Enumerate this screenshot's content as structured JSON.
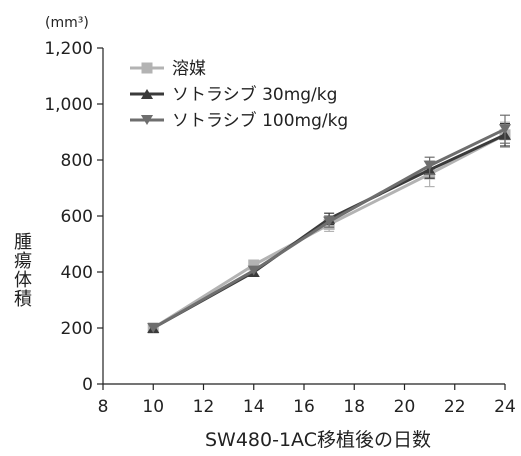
{
  "chart_data": {
    "type": "line",
    "title": "",
    "unit_label": "(mm³)",
    "ylabel": "腫瘍体積",
    "xlabel": "SW480-1AC移植後の日数",
    "xlim": [
      8,
      24
    ],
    "ylim": [
      0,
      1200
    ],
    "x_ticks": [
      8,
      10,
      12,
      14,
      16,
      18,
      20,
      22,
      24
    ],
    "y_ticks": [
      0,
      200,
      400,
      600,
      800,
      1000,
      1200
    ],
    "y_tick_labels": [
      "0",
      "200",
      "400",
      "600",
      "800",
      "1,000",
      "1,200"
    ],
    "x_tick_labels": [
      "8",
      "10",
      "12",
      "14",
      "16",
      "18",
      "20",
      "22",
      "24"
    ],
    "grid": false,
    "legend_position": "top-left",
    "series": [
      {
        "name": "溶媒",
        "marker": "square",
        "color": "#b3b3b3",
        "x": [
          10,
          14,
          17,
          21,
          24
        ],
        "y": [
          200,
          425,
          570,
          750,
          890
        ],
        "error": [
          0,
          0,
          25,
          45,
          45
        ]
      },
      {
        "name": "ソトラシブ 30mg/kg",
        "marker": "triangle-up",
        "color": "#3a3a3a",
        "x": [
          10,
          14,
          17,
          21,
          24
        ],
        "y": [
          200,
          400,
          590,
          765,
          890
        ],
        "error": [
          0,
          0,
          20,
          30,
          40
        ]
      },
      {
        "name": "ソトラシブ 100mg/kg",
        "marker": "triangle-down",
        "color": "#6e6e6e",
        "x": [
          10,
          14,
          17,
          21,
          24
        ],
        "y": [
          200,
          405,
          580,
          780,
          910
        ],
        "error": [
          0,
          0,
          20,
          30,
          50
        ]
      }
    ]
  }
}
